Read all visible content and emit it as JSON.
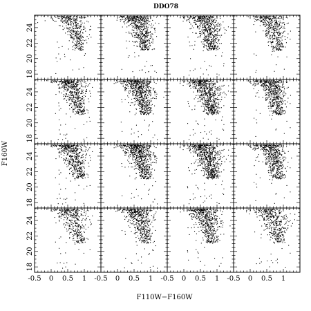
{
  "chart_data": {
    "type": "scatter",
    "title": "DDO78",
    "xlabel": "F110W−F160W",
    "ylabel": "F160W",
    "grid": {
      "rows": 4,
      "cols": 4,
      "layout": "shared-axes"
    },
    "xlim": [
      -0.5,
      1.5
    ],
    "ylim": [
      25.6,
      17.3
    ],
    "y_inverted": true,
    "grid_lines": false,
    "x_ticks": [
      -0.5,
      0,
      0.5,
      1
    ],
    "x_tick_labels": [
      "-0.5",
      "0",
      "0.5",
      "1"
    ],
    "y_ticks": [
      18,
      20,
      22,
      24
    ],
    "y_tick_labels": [
      "18",
      "20",
      "22",
      "24"
    ],
    "point_counts": [
      [
        420,
        620,
        640,
        460
      ],
      [
        560,
        700,
        720,
        620
      ],
      [
        560,
        700,
        760,
        580
      ],
      [
        420,
        520,
        560,
        440
      ]
    ],
    "distribution_note": "Red giant branch: color ~0.6-0.9, brightening from F160W~25.5 to ~21; sparse brighter stars up to ~18"
  }
}
